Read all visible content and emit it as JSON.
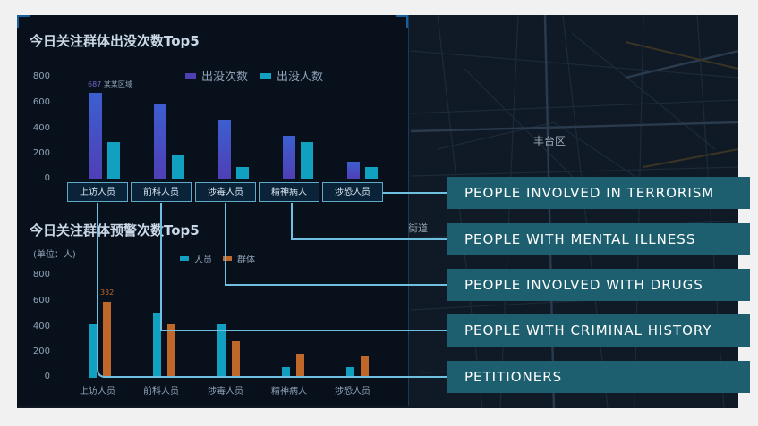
{
  "panel1": {
    "title": "今日关注群体出没次数Top5",
    "legend": [
      "出没次数",
      "出没人数"
    ],
    "yticks": [
      "800",
      "600",
      "400",
      "200",
      "0"
    ],
    "annotation_value": "687",
    "annotation_text": "某某区域"
  },
  "panel2": {
    "title": "今日关注群体预警次数Top5",
    "unit": "(单位：人)",
    "legend": [
      "人员",
      "群体"
    ],
    "yticks": [
      "800",
      "600",
      "400",
      "200",
      "0"
    ],
    "annotation_value": "332"
  },
  "categories": [
    "上访人员",
    "前科人员",
    "涉毒人员",
    "精神病人",
    "涉恐人员"
  ],
  "map": {
    "district_label": "丰台区",
    "road_label": "街道"
  },
  "callouts": [
    "PEOPLE INVOLVED IN TERRORISM",
    "PEOPLE WITH MENTAL ILLNESS",
    "PEOPLE INVOLVED WITH DRUGS",
    "PEOPLE WITH CRIMINAL HISTORY",
    "PETITIONERS"
  ],
  "colors": {
    "series_purple": "#4f3fb5",
    "series_cyan": "#11a0bf",
    "series_orange": "#c0682a",
    "callout_bg": "#1d5e6f",
    "connector": "#6fc0e0"
  },
  "chart_data": [
    {
      "type": "bar",
      "title": "今日关注群体出没次数Top5",
      "categories": [
        "上访人员",
        "前科人员",
        "涉毒人员",
        "精神病人",
        "涉恐人员"
      ],
      "series": [
        {
          "name": "出没次数",
          "values": [
            675,
            590,
            460,
            340,
            135
          ]
        },
        {
          "name": "出没人数",
          "values": [
            285,
            185,
            90,
            290,
            90
          ]
        }
      ],
      "ylim": [
        0,
        800
      ],
      "yticks": [
        0,
        200,
        400,
        600,
        800
      ],
      "annotations": [
        "687 某某区域"
      ],
      "legend_position": "top-right",
      "grid": false
    },
    {
      "type": "bar",
      "title": "今日关注群体预警次数Top5",
      "categories": [
        "上访人员",
        "前科人员",
        "涉毒人员",
        "精神病人",
        "涉恐人员"
      ],
      "series": [
        {
          "name": "人员",
          "values": [
            420,
            505,
            420,
            85,
            85
          ]
        },
        {
          "name": "群体",
          "values": [
            590,
            420,
            285,
            190,
            170
          ]
        }
      ],
      "ylim": [
        0,
        800
      ],
      "yticks": [
        0,
        200,
        400,
        600,
        800
      ],
      "annotations": [
        "332"
      ],
      "legend_position": "top-center",
      "grid": false
    }
  ]
}
